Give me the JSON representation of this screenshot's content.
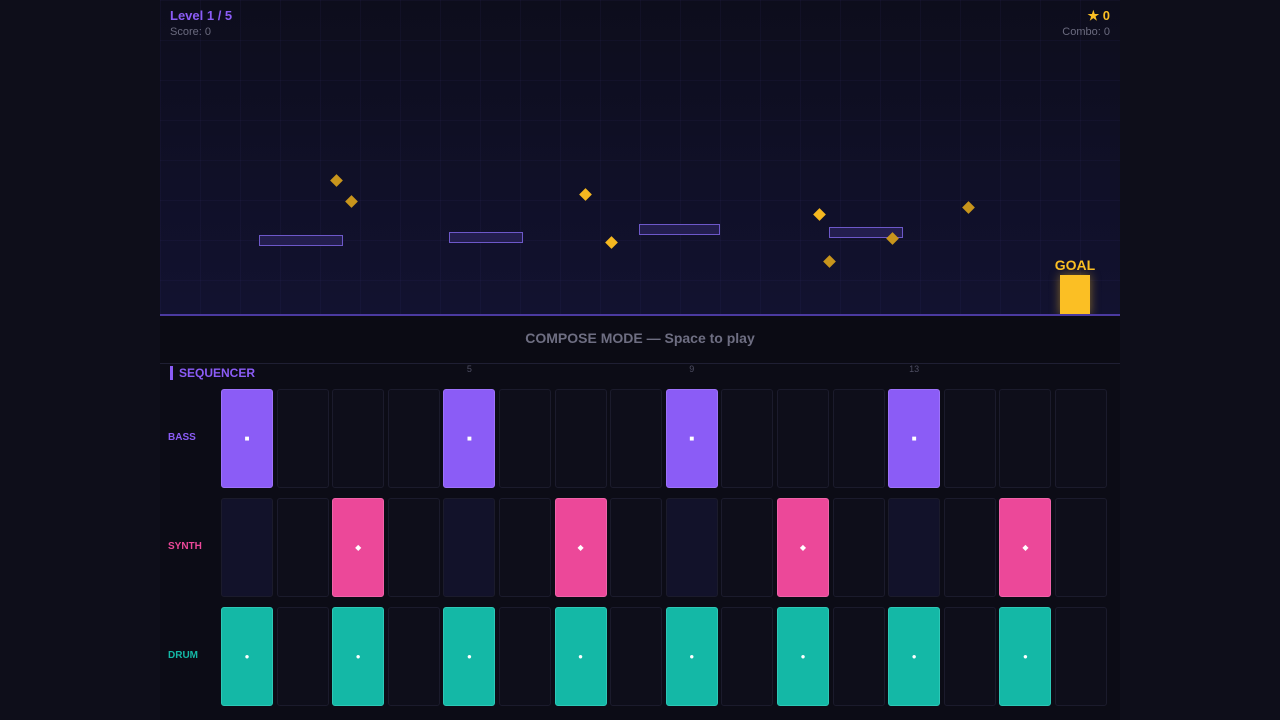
{
  "hud": {
    "level": "Level 1 / 5",
    "score": "Score: 0",
    "stars": "★ 0",
    "combo": "Combo: 0"
  },
  "goal_label": "GOAL",
  "mode_text": "COMPOSE MODE — Space to play",
  "sequencer": {
    "title": "SEQUENCER",
    "step_markers": [
      "5",
      "9",
      "13"
    ],
    "tracks": [
      {
        "name": "BASS",
        "color": "#8b5cf6",
        "symbol": "■",
        "steps": [
          1,
          0,
          0,
          0,
          1,
          0,
          0,
          0,
          1,
          0,
          0,
          0,
          1,
          0,
          0,
          0
        ]
      },
      {
        "name": "SYNTH",
        "color": "#ec4899",
        "symbol": "◆",
        "steps": [
          0,
          0,
          1,
          0,
          0,
          0,
          1,
          0,
          0,
          0,
          1,
          0,
          0,
          0,
          1,
          0
        ]
      },
      {
        "name": "DRUM",
        "color": "#14b8a6",
        "symbol": "●",
        "steps": [
          1,
          0,
          1,
          0,
          1,
          0,
          1,
          0,
          1,
          0,
          1,
          0,
          1,
          0,
          1,
          0
        ]
      }
    ]
  },
  "colors": {
    "accent": "#8b5cf6",
    "gem": "#fbbf24",
    "goal": "#fbbf24"
  }
}
